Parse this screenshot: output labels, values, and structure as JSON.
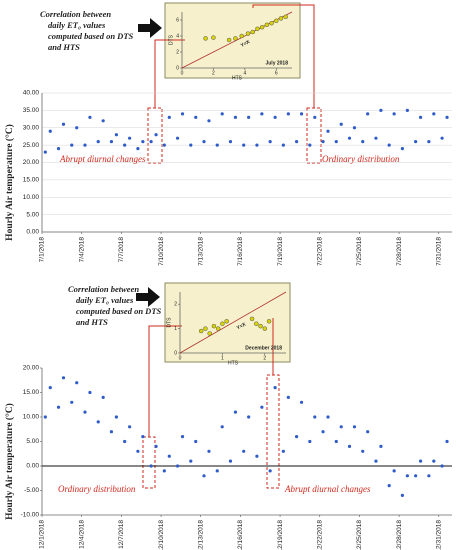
{
  "chart_data": [
    {
      "type": "scatter",
      "xlabel": "HTS",
      "ylabel": "DTS",
      "identity_label": "Y=X",
      "period": "July 2018",
      "x": [
        3.0,
        3.4,
        3.8,
        4.2,
        4.5,
        4.8,
        5.1,
        5.4,
        5.7,
        6.0,
        6.3,
        6.6,
        1.5,
        2.0
      ],
      "values": [
        3.5,
        3.7,
        4.0,
        4.3,
        4.5,
        4.9,
        5.1,
        5.4,
        5.6,
        5.9,
        6.2,
        6.4,
        3.7,
        3.8
      ],
      "color": "#d9d400",
      "xlim": [
        0,
        7
      ],
      "ylim": [
        0,
        7
      ],
      "xticks": [
        0,
        2,
        4,
        6
      ],
      "yticks": [
        0,
        2,
        4,
        6
      ]
    },
    {
      "type": "scatter",
      "callout": [
        "Correlation between",
        "daily ET₀ values",
        "computed based on DTS",
        "and HTS"
      ],
      "ylabel": "Hourly Air temperature (°C)",
      "annotations": [
        "Abrupt diurnal changes",
        "Ordinary distribution"
      ],
      "x": [
        1.25,
        1.625,
        2.25,
        2.625,
        3.25,
        3.625,
        4.25,
        4.625,
        5.25,
        5.625,
        6.25,
        6.625,
        7.25,
        7.625,
        8.25,
        8.625,
        9.25,
        9.625,
        10.25,
        10.625,
        11.25,
        11.625,
        12.25,
        12.625,
        13.25,
        13.625,
        14.25,
        14.625,
        15.25,
        15.625,
        16.25,
        16.625,
        17.25,
        17.625,
        18.25,
        18.625,
        19.25,
        19.625,
        20.25,
        20.625,
        21.25,
        21.625,
        22.25,
        22.625,
        23.25,
        23.625,
        24.25,
        24.625,
        25.25,
        25.625,
        26.25,
        26.625,
        27.25,
        27.625,
        28.25,
        28.625,
        29.25,
        29.625,
        30.25,
        30.625,
        31.25,
        31.625
      ],
      "values": [
        23,
        29,
        24,
        31,
        25,
        30,
        25,
        33,
        26,
        32,
        26,
        28,
        25,
        27,
        24,
        26,
        26,
        28,
        25,
        33,
        27,
        34,
        25,
        33,
        26,
        32,
        25,
        34,
        26,
        33,
        25,
        33,
        25,
        34,
        26,
        33,
        25,
        34,
        26,
        34,
        25,
        33,
        26,
        29,
        26,
        31,
        27,
        30,
        26,
        34,
        27,
        35,
        25,
        34,
        24,
        35,
        26,
        33,
        26,
        34,
        27,
        33
      ],
      "color": "#2f5cc9",
      "xlim": [
        1,
        32
      ],
      "ylim": [
        0,
        40
      ],
      "grid": true,
      "xticks": [
        {
          "value": 1,
          "label": "7/1/2018"
        },
        {
          "value": 4,
          "label": "7/4/2018"
        },
        {
          "value": 7,
          "label": "7/7/2018"
        },
        {
          "value": 10,
          "label": "7/10/2018"
        },
        {
          "value": 13,
          "label": "7/13/2018"
        },
        {
          "value": 16,
          "label": "7/16/2018"
        },
        {
          "value": 19,
          "label": "7/19/2018"
        },
        {
          "value": 22,
          "label": "7/22/2018"
        },
        {
          "value": 25,
          "label": "7/25/2018"
        },
        {
          "value": 28,
          "label": "7/28/2018"
        },
        {
          "value": 31,
          "label": "7/31/2018"
        }
      ],
      "yticks": [
        {
          "value": 0,
          "label": "0.00"
        },
        {
          "value": 5,
          "label": "5.00"
        },
        {
          "value": 10,
          "label": "10.00"
        },
        {
          "value": 15,
          "label": "15.00"
        },
        {
          "value": 20,
          "label": "20.00"
        },
        {
          "value": 25,
          "label": "25.00"
        },
        {
          "value": 30,
          "label": "30.00"
        },
        {
          "value": 35,
          "label": "35.00"
        },
        {
          "value": 40,
          "label": "40.00"
        }
      ]
    },
    {
      "type": "scatter",
      "xlabel": "HTS",
      "ylabel": "DTS",
      "identity_label": "Y=X",
      "period": "December 2018",
      "x": [
        0.5,
        0.6,
        0.7,
        0.8,
        0.9,
        1.0,
        1.1,
        1.7,
        1.8,
        1.9,
        2.0,
        2.1
      ],
      "values": [
        0.9,
        1.0,
        0.8,
        1.1,
        1.0,
        1.2,
        1.3,
        1.4,
        1.2,
        1.1,
        1.0,
        1.3
      ],
      "color": "#d9d400",
      "xlim": [
        0,
        2.5
      ],
      "ylim": [
        0,
        2.5
      ],
      "xticks": [
        0,
        1,
        2
      ],
      "yticks": [
        0,
        1,
        2
      ]
    },
    {
      "type": "scatter",
      "callout": [
        "Correlation between",
        "daily ET₀ values",
        "computed based on DTS",
        "and HTS"
      ],
      "ylabel": "Hourly Air temperature (°C)",
      "annotations": [
        "Ordinary distribution",
        "Abrupt diurnal changes"
      ],
      "x": [
        1.25,
        1.625,
        2.25,
        2.625,
        3.25,
        3.625,
        4.25,
        4.625,
        5.25,
        5.625,
        6.25,
        6.625,
        7.25,
        7.625,
        8.25,
        8.625,
        9.25,
        9.625,
        10.25,
        10.625,
        11.25,
        11.625,
        12.25,
        12.625,
        13.25,
        13.625,
        14.25,
        14.625,
        15.25,
        15.625,
        16.25,
        16.625,
        17.25,
        17.625,
        18.25,
        18.625,
        19.25,
        19.625,
        20.25,
        20.625,
        21.25,
        21.625,
        22.25,
        22.625,
        23.25,
        23.625,
        24.25,
        24.625,
        25.25,
        25.625,
        26.25,
        26.625,
        27.25,
        27.625,
        28.25,
        28.625,
        29.25,
        29.625,
        30.25,
        30.625,
        31.25,
        31.625
      ],
      "values": [
        10,
        16,
        12,
        18,
        13,
        17,
        11,
        15,
        9,
        14,
        7,
        10,
        5,
        8,
        3,
        6,
        0,
        4,
        -1,
        2,
        0,
        6,
        1,
        5,
        -2,
        3,
        -1,
        8,
        1,
        11,
        3,
        10,
        2,
        12,
        -1,
        16,
        3,
        14,
        6,
        13,
        5,
        10,
        7,
        10,
        5,
        8,
        4,
        8,
        3,
        7,
        1,
        4,
        -4,
        -1,
        -6,
        -2,
        -2,
        1,
        -2,
        1,
        0,
        5
      ],
      "color": "#2f5cc9",
      "xlim": [
        1,
        32
      ],
      "ylim": [
        -10,
        20
      ],
      "grid": false,
      "zero_line": true,
      "xticks": [
        {
          "value": 1,
          "label": "12/1/2018"
        },
        {
          "value": 4,
          "label": "12/4/2018"
        },
        {
          "value": 7,
          "label": "12/7/2018"
        },
        {
          "value": 10,
          "label": "12/10/2018"
        },
        {
          "value": 13,
          "label": "12/13/2018"
        },
        {
          "value": 16,
          "label": "12/16/2018"
        },
        {
          "value": 19,
          "label": "12/19/2018"
        },
        {
          "value": 22,
          "label": "12/22/2018"
        },
        {
          "value": 25,
          "label": "12/25/2018"
        },
        {
          "value": 28,
          "label": "12/28/2018"
        },
        {
          "value": 31,
          "label": "12/31/2018"
        }
      ],
      "yticks": [
        {
          "value": -10,
          "label": "-10.00"
        },
        {
          "value": -5,
          "label": "-5.00"
        },
        {
          "value": 0,
          "label": "0.00"
        },
        {
          "value": 5,
          "label": "5.00"
        },
        {
          "value": 10,
          "label": "10.00"
        },
        {
          "value": 15,
          "label": "15.00"
        },
        {
          "value": 20,
          "label": "20.00"
        }
      ]
    }
  ]
}
